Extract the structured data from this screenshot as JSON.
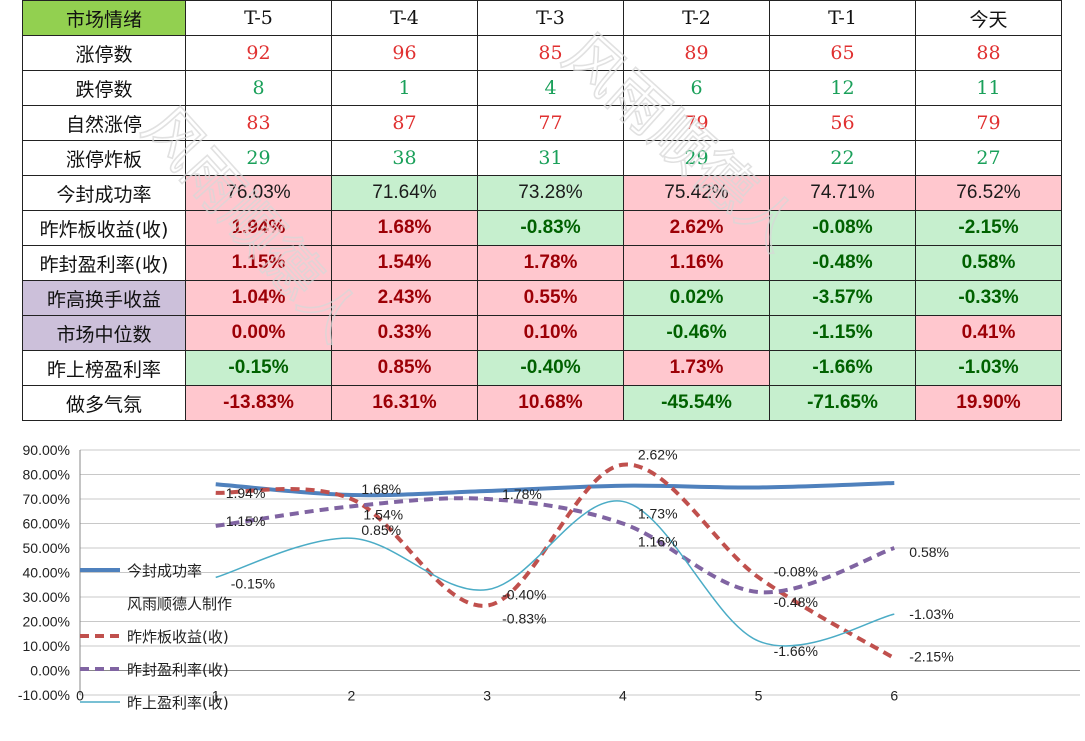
{
  "table": {
    "corner": "市场情绪",
    "columns": [
      "T-5",
      "T-4",
      "T-3",
      "T-2",
      "T-1",
      "今天"
    ],
    "rows": [
      {
        "label": "涨停数",
        "values": [
          "92",
          "96",
          "85",
          "89",
          "65",
          "88"
        ],
        "kind": "count",
        "text_color": "red"
      },
      {
        "label": "跌停数",
        "values": [
          "8",
          "1",
          "4",
          "6",
          "12",
          "11"
        ],
        "kind": "count",
        "text_color": "green"
      },
      {
        "label": "自然涨停",
        "values": [
          "83",
          "87",
          "77",
          "79",
          "56",
          "79"
        ],
        "kind": "count",
        "text_color": "red"
      },
      {
        "label": "涨停炸板",
        "values": [
          "29",
          "38",
          "31",
          "29",
          "22",
          "27"
        ],
        "kind": "count",
        "text_color": "green"
      },
      {
        "label": "今封成功率",
        "values": [
          "76.03%",
          "71.64%",
          "73.28%",
          "75.42%",
          "74.71%",
          "76.52%"
        ],
        "kind": "pct",
        "fills": [
          "pink",
          "green",
          "green",
          "pink",
          "pink",
          "pink"
        ]
      },
      {
        "label": "昨炸板收益(收)",
        "values": [
          "1.94%",
          "1.68%",
          "-0.83%",
          "2.62%",
          "-0.08%",
          "-2.15%"
        ],
        "kind": "pct",
        "fills": [
          "pink",
          "pink",
          "green",
          "pink",
          "green",
          "green"
        ]
      },
      {
        "label": "昨封盈利率(收)",
        "values": [
          "1.15%",
          "1.54%",
          "1.78%",
          "1.16%",
          "-0.48%",
          "0.58%"
        ],
        "kind": "pct",
        "fills": [
          "pink",
          "pink",
          "pink",
          "pink",
          "green",
          "green"
        ]
      },
      {
        "label": "昨高换手收益",
        "values": [
          "1.04%",
          "2.43%",
          "0.55%",
          "0.02%",
          "-3.57%",
          "-0.33%"
        ],
        "kind": "pct",
        "fills": [
          "pink",
          "pink",
          "pink",
          "green",
          "green",
          "green"
        ],
        "label_fill": "purple"
      },
      {
        "label": "市场中位数",
        "values": [
          "0.00%",
          "0.33%",
          "0.10%",
          "-0.46%",
          "-1.15%",
          "0.41%"
        ],
        "kind": "pct",
        "fills": [
          "pink",
          "pink",
          "pink",
          "green",
          "green",
          "pink"
        ],
        "label_fill": "purple"
      },
      {
        "label": "昨上榜盈利率",
        "values": [
          "-0.15%",
          "0.85%",
          "-0.40%",
          "1.73%",
          "-1.66%",
          "-1.03%"
        ],
        "kind": "pct",
        "fills": [
          "green",
          "pink",
          "green",
          "pink",
          "green",
          "green"
        ]
      },
      {
        "label": "做多气氛",
        "values": [
          "-13.83%",
          "16.31%",
          "10.68%",
          "-45.54%",
          "-71.65%",
          "19.90%"
        ],
        "kind": "pct",
        "fills": [
          "pink",
          "pink",
          "pink",
          "green",
          "green",
          "pink"
        ]
      }
    ],
    "colors": {
      "red_text": "#e03030",
      "green_text": "#1aa05a",
      "pink_fill": "#ffc7ce",
      "pink_text": "#9c0006",
      "green_fill": "#c6efce",
      "green_text_dark": "#006100",
      "header_fill": "#92d050",
      "purple_fill": "#ccc0da"
    }
  },
  "watermark": "风雨顺德人",
  "chart_data": {
    "type": "line",
    "x": [
      1,
      2,
      3,
      4,
      5,
      6
    ],
    "xlim": [
      0,
      7
    ],
    "xticks": [
      "0",
      "1",
      "2",
      "3",
      "4",
      "5",
      "6"
    ],
    "ylim": [
      -10,
      90
    ],
    "yticks": [
      "-10.00%",
      "0.00%",
      "10.00%",
      "20.00%",
      "30.00%",
      "40.00%",
      "50.00%",
      "60.00%",
      "70.00%",
      "80.00%",
      "90.00%"
    ],
    "grid": true,
    "legend_position": "left",
    "legend": [
      {
        "name": "今封成功率",
        "style": "thick-solid"
      },
      {
        "name": "风雨顺德人制作",
        "style": "none"
      },
      {
        "name": "昨炸板收益(收)",
        "style": "dashed"
      },
      {
        "name": "昨封盈利率(收)",
        "style": "dashed"
      },
      {
        "name": "昨上盈利率(收)",
        "style": "thin-solid"
      }
    ],
    "series": [
      {
        "name": "今封成功率",
        "color": "#4f81bd",
        "values": [
          76.03,
          71.64,
          73.28,
          75.42,
          74.71,
          76.52
        ],
        "labels": []
      },
      {
        "name": "昨炸板收益(收)",
        "color": "#c0504d",
        "values": [
          72.5,
          70,
          26.5,
          84,
          38,
          5
        ],
        "labels": [
          "1.94%",
          "1.68%",
          "-0.83%",
          "2.62%",
          "-0.08%",
          "-2.15%"
        ]
      },
      {
        "name": "昨封盈利率(收)",
        "color": "#8064a2",
        "values": [
          59,
          67,
          70,
          60,
          32,
          50
        ],
        "labels": [
          "1.15%",
          "1.54%",
          "1.78%",
          "1.16%",
          "-0.48%",
          "0.58%"
        ]
      },
      {
        "name": "昨上盈利率(收)",
        "color": "#4bacc6",
        "values": [
          38,
          54,
          33,
          69,
          12,
          23
        ],
        "labels": [
          "-0.15%",
          "0.85%",
          "-0.40%",
          "1.73%",
          "-1.66%",
          "-1.03%"
        ]
      }
    ]
  }
}
